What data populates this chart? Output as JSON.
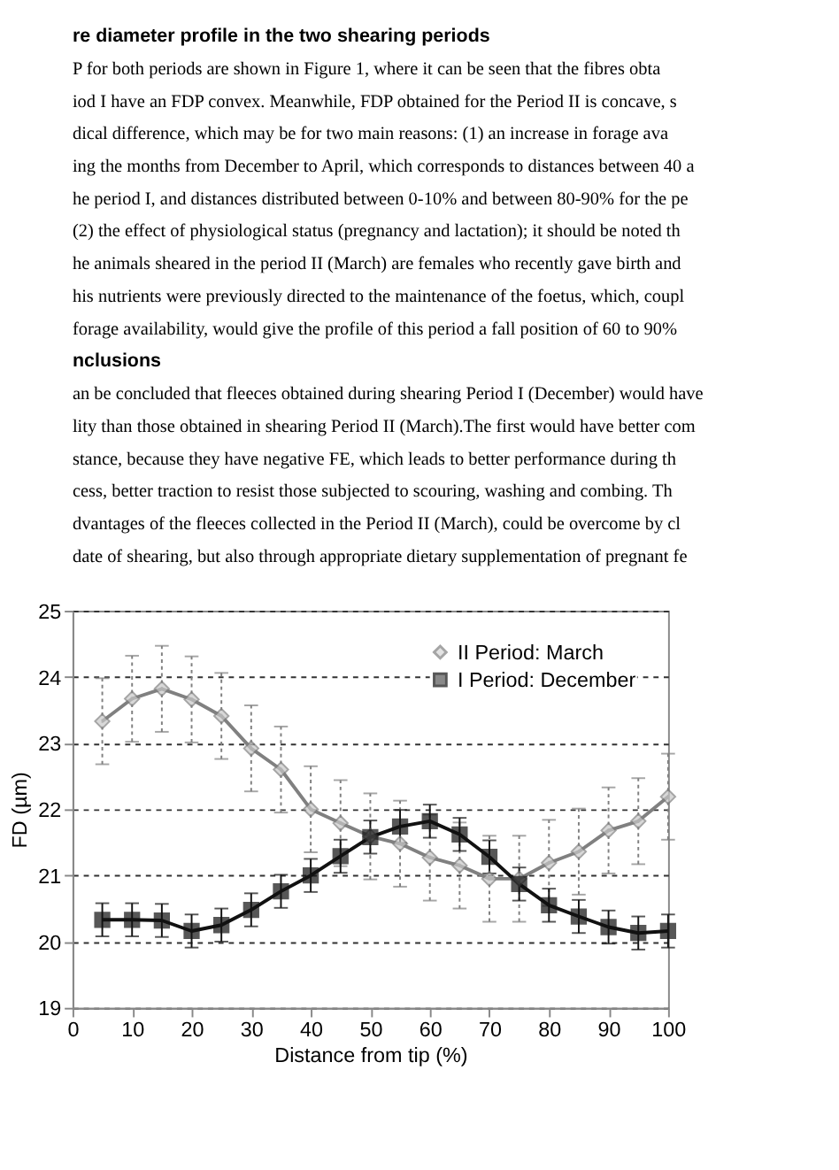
{
  "chart_data": {
    "type": "line",
    "annotations": [
      "re diameter profile in the two shearing periods",
      "P for both periods are shown in Figure 1, where it can be seen that the fibres obta",
      "iod I have an FDP convex. Meanwhile, FDP obtained for the Period II is concave, s",
      "dical difference, which may be for two main reasons: (1) an increase in forage ava",
      "ing the months from December to April, which corresponds to distances between 40 a",
      "he period I, and distances distributed between 0-10% and between 80-90% for the pe",
      "(2) the effect of physiological status (pregnancy and lactation); it should be noted th",
      "he animals sheared in the period II (March) are females who recently gave birth and",
      "his nutrients were previously directed to the maintenance of the foetus, which, coupl",
      "forage availability, would give the profile of this period a fall position of 60 to 90%",
      "nclusions",
      "an be concluded that fleeces obtained during shearing Period I (December) would have",
      "lity than those obtained in shearing Period II (March).The first would have better com",
      "stance, because they have negative FE, which leads to better performance during th",
      "cess, better traction to resist those subjected to scouring, washing and combing. Th",
      "dvantages of the fleeces collected in the Period II (March), could be overcome by cl",
      "date of shearing, but also through appropriate dietary supplementation of pregnant fe"
    ],
    "xlabel": "Distance from tip (%)",
    "ylabel": "FD (µm)",
    "x": [
      5,
      10,
      15,
      20,
      25,
      30,
      35,
      40,
      45,
      50,
      55,
      60,
      65,
      70,
      75,
      80,
      85,
      90,
      95,
      100
    ],
    "xlim": [
      0,
      100
    ],
    "xticks": [
      0,
      10,
      20,
      30,
      40,
      50,
      60,
      70,
      80,
      90,
      100
    ],
    "ylim": [
      19,
      25
    ],
    "yticks": [
      19,
      20,
      21,
      22,
      23,
      24,
      25
    ],
    "grid": "y",
    "legend": "top right",
    "series": [
      {
        "name": "II Period: March",
        "color": "#808080",
        "marker": "diamond",
        "line_style": "solid",
        "values": [
          23.33,
          23.67,
          23.82,
          23.66,
          23.41,
          22.92,
          22.6,
          22.0,
          21.79,
          21.59,
          21.48,
          21.27,
          21.15,
          20.95,
          20.95,
          21.19,
          21.36,
          21.68,
          21.82,
          22.19
        ],
        "errors": [
          0.65,
          0.65,
          0.65,
          0.65,
          0.65,
          0.65,
          0.65,
          0.65,
          0.65,
          0.65,
          0.65,
          0.65,
          0.65,
          0.65,
          0.65,
          0.65,
          0.65,
          0.65,
          0.65,
          0.65
        ]
      },
      {
        "name": "I Period: December",
        "color": "#111111",
        "marker": "square",
        "line_style": "solid",
        "values": [
          20.33,
          20.33,
          20.32,
          20.16,
          20.25,
          20.48,
          20.76,
          21.0,
          21.29,
          21.58,
          21.74,
          21.82,
          21.62,
          21.28,
          20.87,
          20.55,
          20.38,
          20.22,
          20.13,
          20.16
        ],
        "errors": [
          0.25,
          0.25,
          0.25,
          0.25,
          0.25,
          0.25,
          0.25,
          0.25,
          0.25,
          0.25,
          0.25,
          0.25,
          0.25,
          0.25,
          0.25,
          0.25,
          0.25,
          0.25,
          0.25,
          0.25
        ]
      }
    ]
  }
}
